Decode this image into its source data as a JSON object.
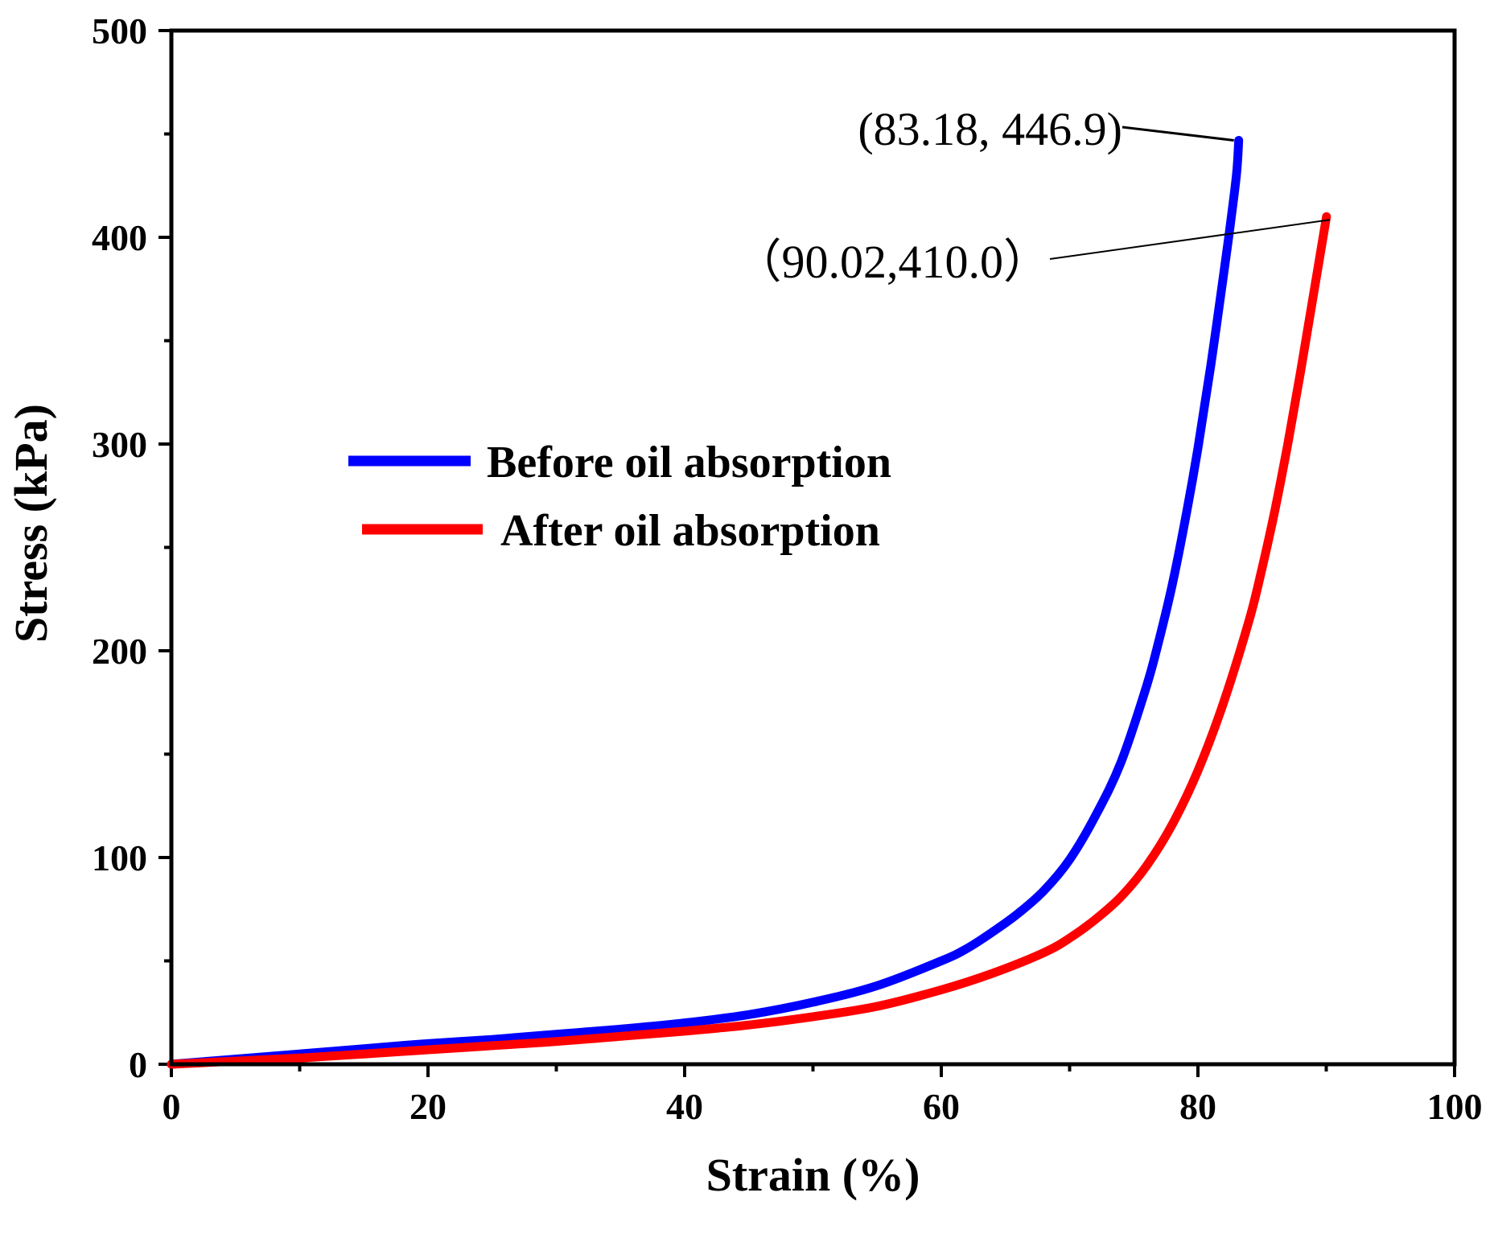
{
  "chart_data": {
    "type": "line",
    "title": "",
    "xlabel": "Strain (%)",
    "ylabel": "Stress (kPa)",
    "xlim": [
      0,
      100
    ],
    "ylim": [
      0,
      500
    ],
    "xticks": [
      0,
      20,
      40,
      60,
      80,
      100
    ],
    "xtick_labels": [
      "0",
      "20",
      "40",
      "60",
      "80",
      "100"
    ],
    "yticks": [
      0,
      100,
      200,
      300,
      400,
      500
    ],
    "ytick_labels": [
      "0",
      "100",
      "200",
      "300",
      "400",
      "500"
    ],
    "grid": false,
    "legend_position": "center-left",
    "series": [
      {
        "name": "Before oil absorption",
        "color": "#0000ff",
        "x": [
          0,
          5,
          10,
          15,
          20,
          25,
          30,
          35,
          40,
          45,
          50,
          55,
          60,
          62,
          64,
          66,
          68,
          70,
          72,
          74,
          76,
          77,
          78,
          79,
          80,
          81,
          82,
          82.5,
          83,
          83.18
        ],
        "y": [
          0,
          2.5,
          5,
          7.5,
          10,
          12,
          14.5,
          17,
          20,
          24,
          30,
          38,
          50,
          56,
          64,
          73,
          84,
          99,
          120,
          146,
          183,
          206,
          232,
          263,
          298,
          338,
          382,
          405,
          430,
          446.9
        ]
      },
      {
        "name": "After oil absorption",
        "color": "#ff0000",
        "x": [
          0,
          5,
          10,
          15,
          20,
          25,
          30,
          35,
          40,
          45,
          50,
          55,
          60,
          64,
          68,
          70,
          72,
          74,
          76,
          78,
          80,
          82,
          84,
          85,
          86,
          87,
          88,
          89,
          90.02
        ],
        "y": [
          0,
          1.5,
          3,
          5,
          7,
          9,
          11,
          13.5,
          16,
          19,
          23,
          28,
          36,
          44,
          54,
          61,
          70,
          81,
          96,
          116,
          142,
          175,
          215,
          240,
          268,
          300,
          335,
          372,
          410.0
        ]
      }
    ],
    "annotations": [
      {
        "text": "(83.18, 446.9)",
        "x": 83.18,
        "y": 446.9
      },
      {
        "text": "（90.02,410.0）",
        "x": 90.02,
        "y": 410.0
      }
    ]
  }
}
